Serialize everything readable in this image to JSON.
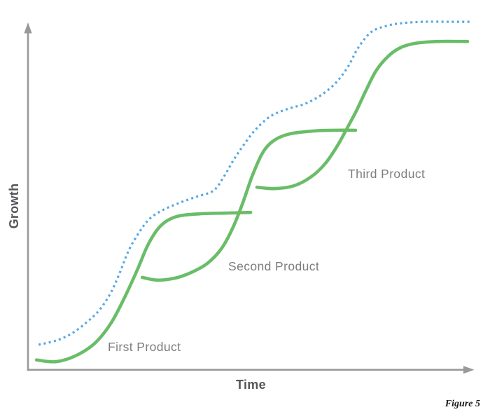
{
  "figure": {
    "y_axis_label": "Growth",
    "x_axis_label": "Time",
    "caption": "Figure 5"
  },
  "colors": {
    "product_curve": "#6ABD68",
    "envelope_curve": "#55A8E3",
    "axis": "#97999B",
    "curve_label": "#7B7D80",
    "axis_label": "#55565A",
    "caption": "#1A1A1A",
    "background": "#FFFFFF"
  },
  "chart_data": {
    "type": "line",
    "title": "",
    "xlabel": "Time",
    "ylabel": "Growth",
    "x_range": [
      0,
      100
    ],
    "y_range": [
      0,
      101
    ],
    "units": "relative (conceptual diagram, no axis ticks or numeric scale shown)",
    "grid": false,
    "legend": "inline text labels next to each product curve",
    "description": "Three successive product S-curves (solid green) with a dotted blue overall-growth envelope curve above them",
    "series": [
      {
        "id": "first-product",
        "name": "First Product",
        "style": "solid",
        "color_key": "product_curve",
        "label_visible": true,
        "points": [
          [
            1.9,
            2.9
          ],
          [
            6.3,
            2.4
          ],
          [
            10.7,
            4.1
          ],
          [
            15.0,
            7.7
          ],
          [
            18.6,
            13.4
          ],
          [
            21.7,
            20.9
          ],
          [
            24.6,
            29.0
          ],
          [
            27.1,
            36.5
          ],
          [
            29.9,
            41.8
          ],
          [
            33.4,
            44.4
          ],
          [
            38.6,
            45.2
          ],
          [
            44.1,
            45.4
          ],
          [
            50.1,
            45.6
          ]
        ]
      },
      {
        "id": "second-product",
        "name": "Second Product",
        "style": "solid",
        "color_key": "product_curve",
        "label_visible": true,
        "points": [
          [
            25.7,
            26.8
          ],
          [
            29.1,
            26.0
          ],
          [
            33.1,
            26.6
          ],
          [
            36.7,
            28.2
          ],
          [
            40.3,
            30.8
          ],
          [
            43.5,
            35.1
          ],
          [
            46.1,
            41.2
          ],
          [
            48.3,
            48.3
          ],
          [
            50.4,
            56.0
          ],
          [
            52.8,
            62.9
          ],
          [
            55.4,
            66.5
          ],
          [
            59.1,
            68.4
          ],
          [
            64.6,
            69.2
          ],
          [
            69.3,
            69.4
          ],
          [
            73.7,
            69.4
          ]
        ]
      },
      {
        "id": "third-product",
        "name": "Third Product",
        "style": "solid",
        "color_key": "product_curve",
        "label_visible": true,
        "points": [
          [
            51.5,
            52.9
          ],
          [
            55.4,
            52.5
          ],
          [
            59.8,
            53.3
          ],
          [
            63.8,
            56.0
          ],
          [
            66.9,
            59.8
          ],
          [
            69.6,
            64.9
          ],
          [
            71.8,
            70.0
          ],
          [
            73.9,
            75.1
          ],
          [
            76.1,
            81.1
          ],
          [
            78.4,
            86.8
          ],
          [
            81.1,
            90.9
          ],
          [
            83.8,
            93.3
          ],
          [
            86.9,
            94.5
          ],
          [
            92.1,
            95.1
          ],
          [
            98.9,
            95.1
          ]
        ]
      },
      {
        "id": "growth-envelope",
        "name": "Overall growth envelope",
        "style": "dotted",
        "color_key": "envelope_curve",
        "label_visible": false,
        "points": [
          [
            2.4,
            7.3
          ],
          [
            6.3,
            8.5
          ],
          [
            9.8,
            10.5
          ],
          [
            13.2,
            13.8
          ],
          [
            16.1,
            17.4
          ],
          [
            18.6,
            22.3
          ],
          [
            20.6,
            28.0
          ],
          [
            22.7,
            34.7
          ],
          [
            25.2,
            40.2
          ],
          [
            27.4,
            43.8
          ],
          [
            30.2,
            46.2
          ],
          [
            33.9,
            48.3
          ],
          [
            37.8,
            50.1
          ],
          [
            41.7,
            51.9
          ],
          [
            44.1,
            56.0
          ],
          [
            46.3,
            60.9
          ],
          [
            48.5,
            65.1
          ],
          [
            51.2,
            69.6
          ],
          [
            54.5,
            73.4
          ],
          [
            58.3,
            75.5
          ],
          [
            62.4,
            77.1
          ],
          [
            66.1,
            79.7
          ],
          [
            69.3,
            83.2
          ],
          [
            72.0,
            87.8
          ],
          [
            74.3,
            93.3
          ],
          [
            77.2,
            97.8
          ],
          [
            80.6,
            99.6
          ],
          [
            84.3,
            100.4
          ],
          [
            89.0,
            100.8
          ],
          [
            94.5,
            100.8
          ],
          [
            99.5,
            100.8
          ]
        ]
      }
    ]
  }
}
